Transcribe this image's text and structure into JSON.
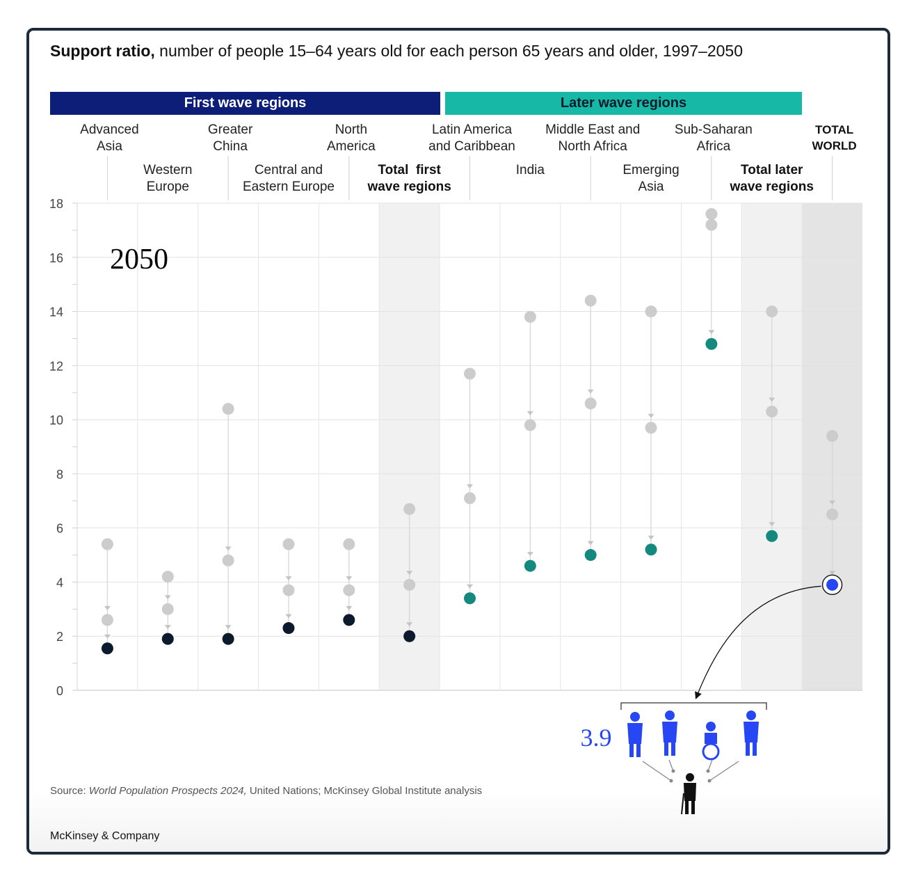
{
  "title": {
    "bold": "Support ratio,",
    "rest": " number of people 15–64 years old for each person 65 years and older, 1997–2050"
  },
  "bands": {
    "first": "First wave regions",
    "later": "Later wave regions"
  },
  "year_label": "2050",
  "source": {
    "prefix": "Source: ",
    "italic": "World Population Prospects 2024,",
    "rest": " United Nations; McKinsey Global Institute analysis"
  },
  "brand": "McKinsey & Company",
  "callout_value": "3.9",
  "colors": {
    "first_wave": "#0c1e78",
    "later_wave": "#17b8a6",
    "dark_dot": "#0b1a2c",
    "teal_dot": "#148a7e",
    "world_dot": "#2747f5",
    "past_dot": "#cccccc"
  },
  "chart_data": {
    "type": "scatter",
    "title": "Support ratio, number of people 15–64 years old for each person 65 years and older, 1997–2050",
    "ylim": [
      0,
      18
    ],
    "yticks": [
      0,
      2,
      4,
      6,
      8,
      10,
      12,
      14,
      16,
      18
    ],
    "series_meaning": [
      "1997",
      "intermediate",
      "2050"
    ],
    "categories": [
      {
        "label": "Advanced\nAsia",
        "group": "first",
        "values": [
          5.4,
          2.6,
          1.55
        ]
      },
      {
        "label": "Western\nEurope",
        "group": "first",
        "values": [
          4.2,
          3.0,
          1.9
        ]
      },
      {
        "label": "Greater\nChina",
        "group": "first",
        "values": [
          10.4,
          4.8,
          1.9
        ]
      },
      {
        "label": "Central and\nEastern Europe",
        "group": "first",
        "values": [
          5.4,
          3.7,
          2.3
        ]
      },
      {
        "label": "North\nAmerica",
        "group": "first",
        "values": [
          5.4,
          3.7,
          2.6
        ]
      },
      {
        "label": "Total  first\nwave regions",
        "group": "first-total",
        "values": [
          6.7,
          3.9,
          2.0
        ]
      },
      {
        "label": "Latin America\nand Caribbean",
        "group": "later",
        "values": [
          11.7,
          7.1,
          3.4
        ]
      },
      {
        "label": "India",
        "group": "later",
        "values": [
          13.8,
          9.8,
          4.6
        ]
      },
      {
        "label": "Middle East and\nNorth Africa",
        "group": "later",
        "values": [
          14.4,
          10.6,
          5.0
        ]
      },
      {
        "label": "Emerging\nAsia",
        "group": "later",
        "values": [
          14.0,
          9.7,
          5.2
        ]
      },
      {
        "label": "Sub-Saharan\nAfrica",
        "group": "later",
        "values": [
          17.6,
          17.2,
          12.8
        ]
      },
      {
        "label": "Total later\nwave regions",
        "group": "later-total",
        "values": [
          14.0,
          10.3,
          5.7
        ]
      },
      {
        "label": "TOTAL\nWORLD",
        "group": "world",
        "values": [
          9.4,
          6.5,
          3.9
        ]
      }
    ]
  }
}
